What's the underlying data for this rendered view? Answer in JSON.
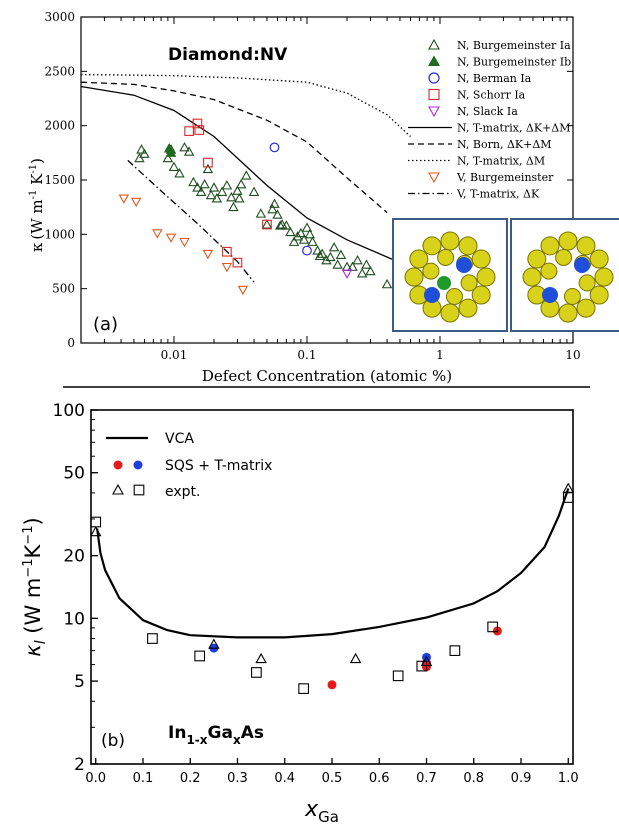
{
  "chart_data": [
    {
      "panel": "(a)",
      "type": "scatter",
      "title": "Diamond:NV",
      "xlabel": "Defect Concentration (atomic %)",
      "ylabel": "κ (W m⁻¹ K⁻¹)",
      "xscale": "log",
      "xlim": [
        0.002,
        10
      ],
      "ylim": [
        0,
        3000
      ],
      "x_ticks": [
        0.01,
        0.1,
        1,
        10
      ],
      "x_tick_labels": [
        "0.01",
        "0.1",
        "1",
        "10"
      ],
      "y_ticks": [
        0,
        500,
        1000,
        1500,
        2000,
        2500,
        3000
      ],
      "legend_position": "top-right",
      "series": [
        {
          "name": "N, Burgemeinster Ia",
          "marker": "triangle-up-open",
          "color": "#1f4d1f",
          "points": [
            [
              0.0055,
              1700
            ],
            [
              0.0057,
              1780
            ],
            [
              0.006,
              1740
            ],
            [
              0.009,
              1700
            ],
            [
              0.0095,
              1780
            ],
            [
              0.01,
              1620
            ],
            [
              0.011,
              1560
            ],
            [
              0.012,
              1800
            ],
            [
              0.013,
              1760
            ],
            [
              0.014,
              1480
            ],
            [
              0.015,
              1430
            ],
            [
              0.016,
              1390
            ],
            [
              0.017,
              1460
            ],
            [
              0.018,
              1600
            ],
            [
              0.019,
              1360
            ],
            [
              0.02,
              1430
            ],
            [
              0.021,
              1330
            ],
            [
              0.023,
              1390
            ],
            [
              0.025,
              1450
            ],
            [
              0.027,
              1340
            ],
            [
              0.028,
              1250
            ],
            [
              0.03,
              1400
            ],
            [
              0.031,
              1330
            ],
            [
              0.032,
              1460
            ],
            [
              0.035,
              1540
            ],
            [
              0.04,
              1390
            ],
            [
              0.045,
              1190
            ],
            [
              0.05,
              1090
            ],
            [
              0.055,
              1230
            ],
            [
              0.057,
              1280
            ],
            [
              0.06,
              1180
            ],
            [
              0.063,
              1080
            ],
            [
              0.065,
              1090
            ],
            [
              0.07,
              1080
            ],
            [
              0.075,
              1020
            ],
            [
              0.08,
              930
            ],
            [
              0.085,
              980
            ],
            [
              0.09,
              1010
            ],
            [
              0.095,
              950
            ],
            [
              0.1,
              1060
            ],
            [
              0.105,
              1000
            ],
            [
              0.11,
              930
            ],
            [
              0.12,
              850
            ],
            [
              0.125,
              800
            ],
            [
              0.13,
              820
            ],
            [
              0.14,
              760
            ],
            [
              0.15,
              790
            ],
            [
              0.16,
              880
            ],
            [
              0.17,
              720
            ],
            [
              0.18,
              810
            ],
            [
              0.2,
              700
            ],
            [
              0.22,
              700
            ],
            [
              0.24,
              760
            ],
            [
              0.26,
              640
            ],
            [
              0.28,
              720
            ],
            [
              0.3,
              660
            ],
            [
              0.4,
              540
            ]
          ]
        },
        {
          "name": "N, Burgemeinster Ib",
          "marker": "triangle-up-filled",
          "color": "#1f6b1f",
          "points": [
            [
              0.0092,
              1790
            ],
            [
              0.0095,
              1750
            ]
          ]
        },
        {
          "name": "N, Berman Ia",
          "marker": "circle-open",
          "color": "#2a2ad6",
          "points": [
            [
              0.057,
              1800
            ],
            [
              0.1,
              850
            ]
          ]
        },
        {
          "name": "N, Schorr Ia",
          "marker": "square-open",
          "color": "#d62a2a",
          "points": [
            [
              0.013,
              1950
            ],
            [
              0.015,
              2020
            ],
            [
              0.0155,
              1960
            ],
            [
              0.018,
              1660
            ],
            [
              0.025,
              840
            ],
            [
              0.03,
              740
            ],
            [
              0.05,
              1090
            ]
          ]
        },
        {
          "name": "N, Slack Ia",
          "marker": "triangle-down-open",
          "color": "#b42ad6",
          "points": [
            [
              0.2,
              640
            ]
          ]
        },
        {
          "name": "V, Burgemeinster",
          "marker": "triangle-down-open",
          "color": "#e05a1e",
          "points": [
            [
              0.0042,
              1330
            ],
            [
              0.0052,
              1300
            ],
            [
              0.0075,
              1010
            ],
            [
              0.0095,
              970
            ],
            [
              0.012,
              930
            ],
            [
              0.018,
              820
            ],
            [
              0.025,
              700
            ],
            [
              0.033,
              490
            ]
          ]
        }
      ],
      "lines": [
        {
          "name": "N, T-matrix, ΔK+ΔM",
          "style": "solid",
          "points": [
            [
              0.002,
              2360
            ],
            [
              0.005,
              2280
            ],
            [
              0.01,
              2140
            ],
            [
              0.02,
              1900
            ],
            [
              0.05,
              1450
            ],
            [
              0.1,
              1150
            ],
            [
              0.2,
              950
            ],
            [
              0.5,
              740
            ],
            [
              1,
              640
            ]
          ]
        },
        {
          "name": "N, Born, ΔK+ΔM",
          "style": "dashed",
          "points": [
            [
              0.002,
              2400
            ],
            [
              0.005,
              2380
            ],
            [
              0.01,
              2320
            ],
            [
              0.02,
              2240
            ],
            [
              0.05,
              2050
            ],
            [
              0.1,
              1850
            ],
            [
              0.2,
              1520
            ],
            [
              0.4,
              1200
            ]
          ]
        },
        {
          "name": "N, T-matrix, ΔM",
          "style": "dotted",
          "points": [
            [
              0.002,
              2470
            ],
            [
              0.005,
              2465
            ],
            [
              0.01,
              2460
            ],
            [
              0.03,
              2440
            ],
            [
              0.1,
              2400
            ],
            [
              0.2,
              2300
            ],
            [
              0.4,
              2100
            ],
            [
              0.6,
              1900
            ]
          ]
        },
        {
          "name": "V, T-matrix, ΔK",
          "style": "dashdot",
          "points": [
            [
              0.0045,
              1680
            ],
            [
              0.008,
              1400
            ],
            [
              0.015,
              1100
            ],
            [
              0.03,
              750
            ],
            [
              0.04,
              560
            ]
          ]
        }
      ]
    },
    {
      "panel": "(b)",
      "type": "scatter",
      "annotation": "In₁₋ₓGaₓAs",
      "xlabel": "x_Ga",
      "ylabel": "κ_l (W m⁻¹K⁻¹)",
      "yscale": "log",
      "xlim": [
        -0.01,
        1.01
      ],
      "ylim": [
        2,
        100
      ],
      "x_ticks": [
        0.0,
        0.1,
        0.2,
        0.3,
        0.4,
        0.5,
        0.6,
        0.7,
        0.8,
        0.9,
        1.0
      ],
      "y_ticks": [
        2,
        5,
        10,
        20,
        50,
        100
      ],
      "legend_position": "top-left",
      "series": [
        {
          "name": "VCA",
          "style": "line",
          "points": [
            [
              0.003,
              27
            ],
            [
              0.01,
              20.5
            ],
            [
              0.02,
              17
            ],
            [
              0.05,
              12.5
            ],
            [
              0.1,
              9.8
            ],
            [
              0.15,
              8.8
            ],
            [
              0.2,
              8.3
            ],
            [
              0.3,
              8.1
            ],
            [
              0.4,
              8.1
            ],
            [
              0.5,
              8.4
            ],
            [
              0.6,
              9.1
            ],
            [
              0.7,
              10.1
            ],
            [
              0.8,
              11.8
            ],
            [
              0.85,
              13.5
            ],
            [
              0.9,
              16.5
            ],
            [
              0.95,
              22
            ],
            [
              0.98,
              31
            ],
            [
              1.0,
              42
            ]
          ]
        },
        {
          "name": "SQS + T-matrix",
          "marker": "circle-filled",
          "color": "#e41a1c",
          "points": [
            [
              0.5,
              4.8
            ],
            [
              0.7,
              6.1
            ],
            [
              0.7,
              5.85
            ],
            [
              0.85,
              8.7
            ]
          ]
        },
        {
          "name": "SQS + T-matrix",
          "marker": "circle-filled",
          "color": "#1f3ee0",
          "points": [
            [
              0.25,
              7.2
            ],
            [
              0.7,
              6.5
            ]
          ]
        },
        {
          "name": "expt.",
          "marker": "triangle-up-open",
          "color": "#000000",
          "points": [
            [
              0.0,
              26
            ],
            [
              0.25,
              7.5
            ],
            [
              0.35,
              6.4
            ],
            [
              0.55,
              6.4
            ],
            [
              0.7,
              6.2
            ],
            [
              1.0,
              42
            ]
          ]
        },
        {
          "name": "expt.",
          "marker": "square-open",
          "color": "#000000",
          "points": [
            [
              0.0,
              29
            ],
            [
              0.12,
              8.0
            ],
            [
              0.22,
              6.6
            ],
            [
              0.34,
              5.5
            ],
            [
              0.44,
              4.6
            ],
            [
              0.64,
              5.3
            ],
            [
              0.69,
              5.9
            ],
            [
              0.76,
              7.0
            ],
            [
              0.84,
              9.1
            ],
            [
              1.0,
              38
            ]
          ]
        }
      ]
    }
  ],
  "legend_a": [
    {
      "label": "N, Burgemeinster Ia",
      "marker": "triangle-up-open",
      "color": "#1f4d1f"
    },
    {
      "label": "N, Burgemeinster Ib",
      "marker": "triangle-up-filled",
      "color": "#1f6b1f"
    },
    {
      "label": "N, Berman Ia",
      "marker": "circle-open",
      "color": "#2a2ad6"
    },
    {
      "label": "N, Schorr Ia",
      "marker": "square-open",
      "color": "#d62a2a"
    },
    {
      "label": "N, Slack Ia",
      "marker": "triangle-down-open",
      "color": "#b42ad6"
    },
    {
      "label": "N, T-matrix, ΔK+ΔM",
      "line": "solid"
    },
    {
      "label": "N, Born, ΔK+ΔM",
      "line": "dashed"
    },
    {
      "label": "N, T-matrix, ΔM",
      "line": "dotted"
    },
    {
      "label": "V, Burgemeinster",
      "marker": "triangle-down-open",
      "color": "#e05a1e"
    },
    {
      "label": "V, T-matrix, ΔK",
      "line": "dashdot"
    }
  ],
  "legend_b": {
    "vca": "VCA",
    "sqs": "SQS + T-matrix",
    "expt": "expt."
  },
  "labels": {
    "a_title": "Diamond:NV",
    "a_panel": "(a)",
    "a_xlabel": "Defect Concentration (atomic %)",
    "a_ylabel_k": "κ",
    "a_ylabel_units": "(W m",
    "a_ylabel_exp1": "-1",
    "a_ylabel_k2": " K",
    "a_ylabel_exp2": "-1",
    "a_ylabel_close": ")",
    "b_panel": "(b)",
    "b_ann_in": "In",
    "b_ann_sub1": "1-x",
    "b_ann_ga": "Ga",
    "b_ann_sub2": "x",
    "b_ann_as": "As",
    "b_ylabel_k": "κ",
    "b_ylabel_sub": "l",
    "b_ylabel_units": " (W m",
    "b_ylabel_exp1": "−1",
    "b_ylabel_k2": "K",
    "b_ylabel_exp2": "−1",
    "b_ylabel_close": ")",
    "b_xlabel_x": "x",
    "b_xlabel_sub": "Ga"
  },
  "colors": {
    "inset_border": "#3a5a8c",
    "inset_bg": "#cfcfcf",
    "atom_yellow": "#d8d21a",
    "atom_dark": "#7a7400",
    "atom_blue": "#1f4fd8",
    "atom_green": "#1f9a2a"
  }
}
